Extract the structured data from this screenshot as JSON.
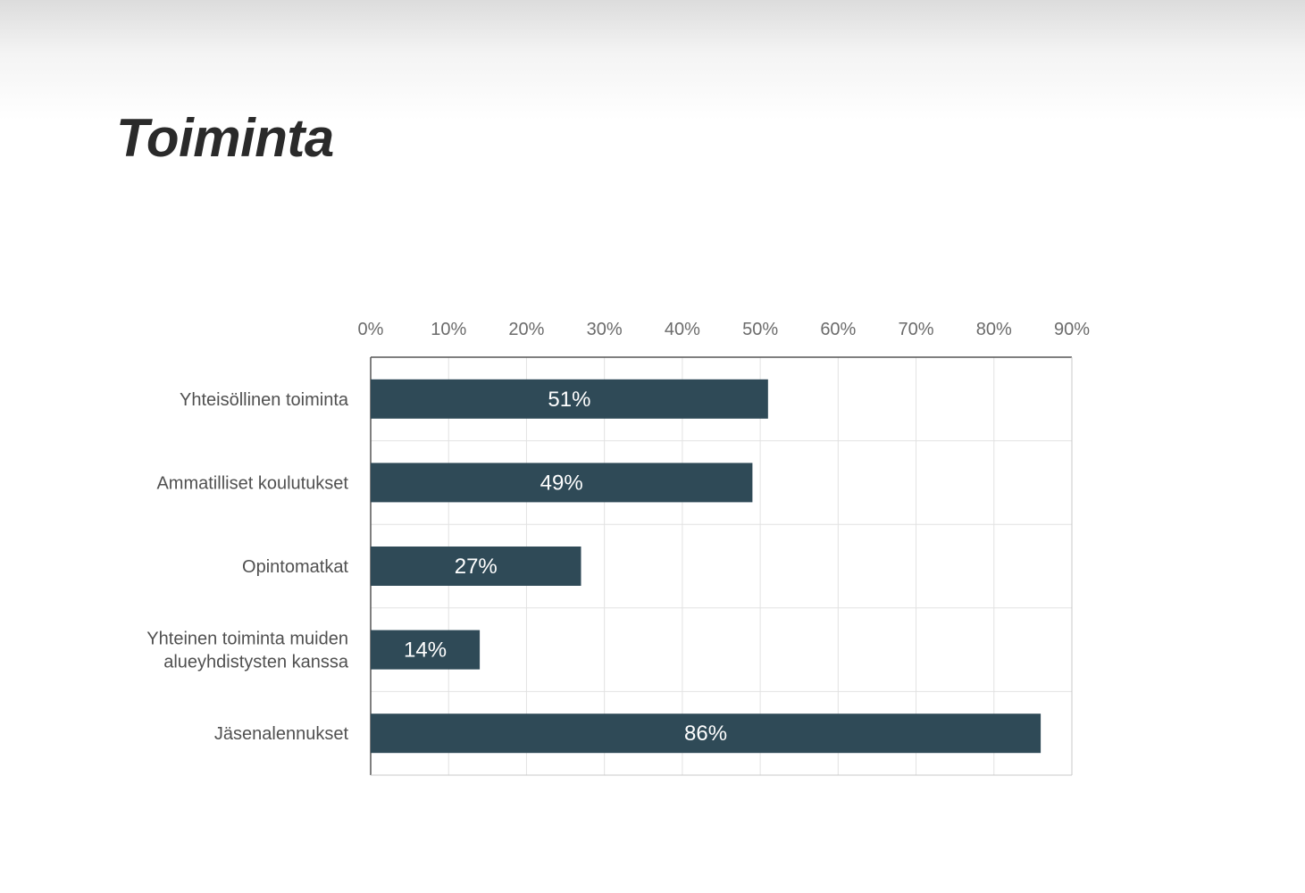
{
  "page": {
    "title": "Toiminta"
  },
  "colors": {
    "bar": "#2f4a57",
    "grid": "#e2e2e2",
    "axis": "#555555",
    "background": "#ffffff"
  },
  "chart_data": {
    "type": "bar",
    "orientation": "horizontal",
    "title": "",
    "xlabel": "",
    "ylabel": "",
    "categories": [
      [
        "Yhteisöllinen toiminta"
      ],
      [
        "Ammatilliset koulutukset"
      ],
      [
        "Opintomatkat"
      ],
      [
        "Yhteinen toiminta muiden",
        "alueyhdistysten kanssa"
      ],
      [
        "Jäsenalennukset"
      ]
    ],
    "values": [
      51,
      49,
      27,
      14,
      86
    ],
    "data_labels": [
      "51%",
      "49%",
      "27%",
      "14%",
      "86%"
    ],
    "xlim": [
      0,
      90
    ],
    "x_ticks": [
      "0%",
      "10%",
      "20%",
      "30%",
      "40%",
      "50%",
      "60%",
      "70%",
      "80%",
      "90%"
    ],
    "x_axis_position": "top",
    "grid": true,
    "legend": "none"
  }
}
